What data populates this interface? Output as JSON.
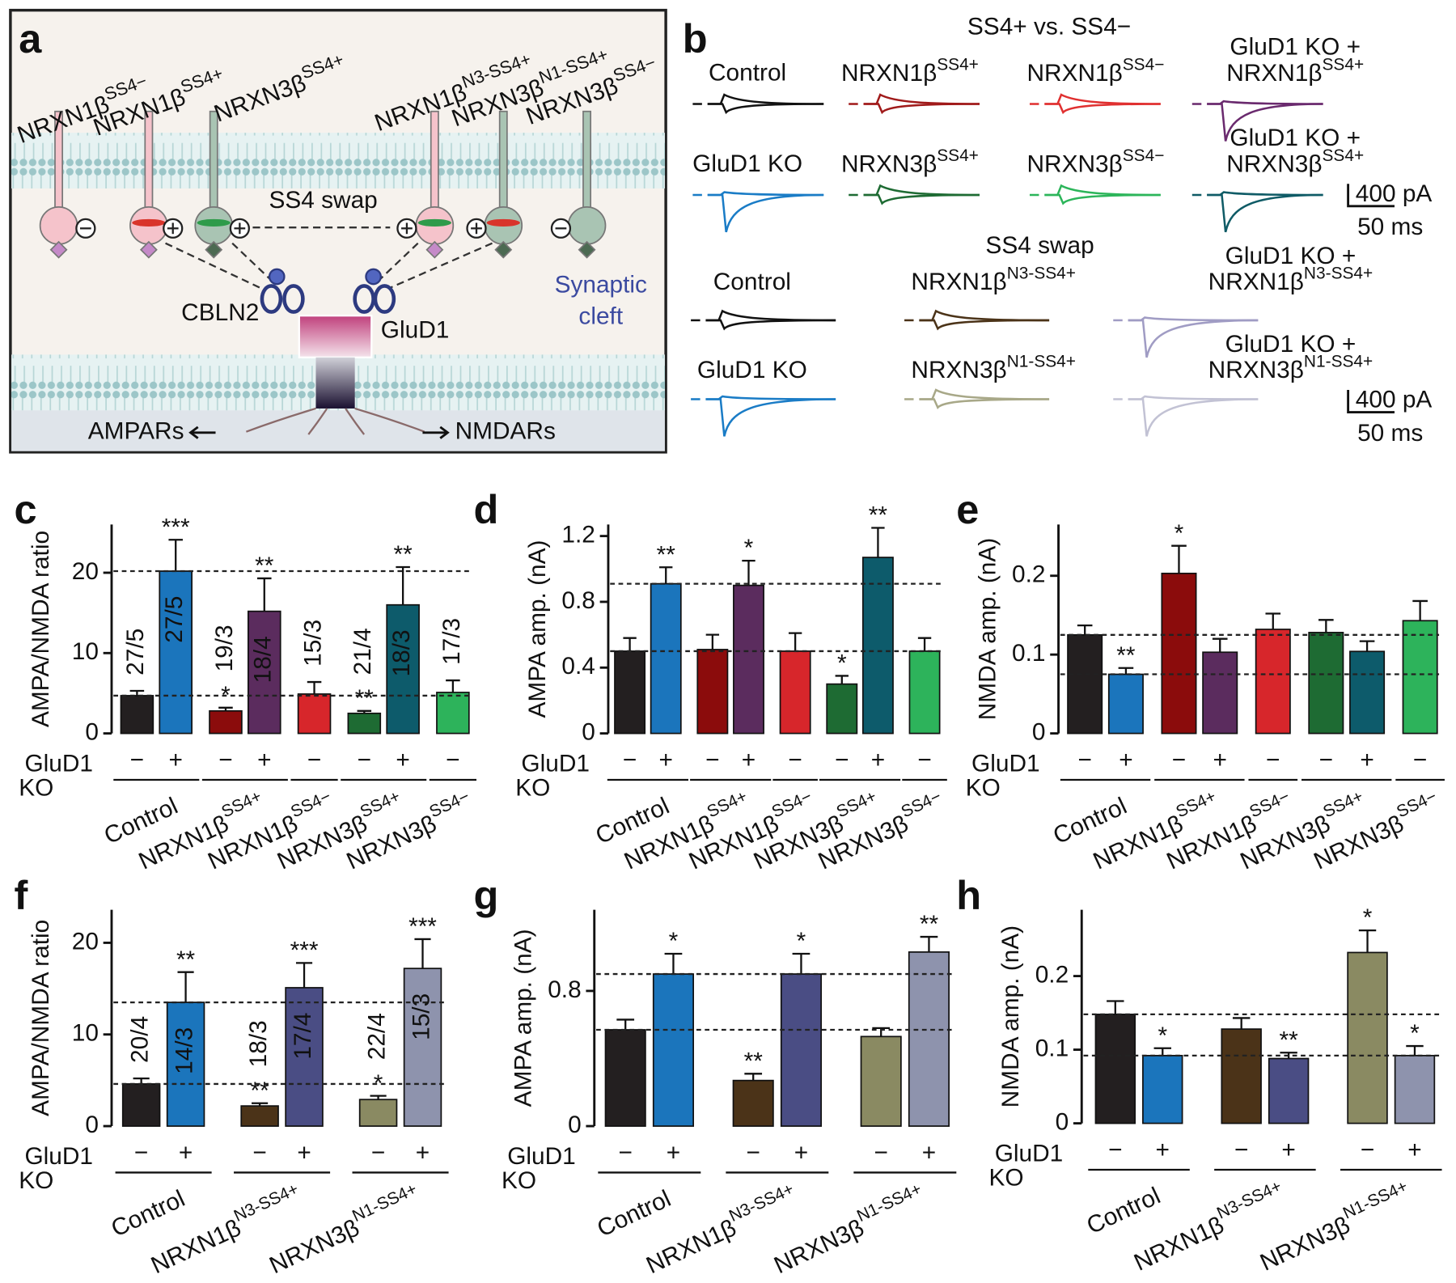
{
  "panel_labels": [
    "a",
    "b",
    "c",
    "d",
    "e",
    "f",
    "g",
    "h"
  ],
  "diagram": {
    "nrxn_labels": [
      {
        "base": "NRXN1β",
        "sup": "SS4−"
      },
      {
        "base": "NRXN1β",
        "sup": "SS4+"
      },
      {
        "base": "NRXN3β",
        "sup": "SS4+"
      },
      {
        "base": "NRXN1β",
        "sup": "N3-SS4+"
      },
      {
        "base": "NRXN3β",
        "sup": "N1-SS4+"
      },
      {
        "base": "NRXN3β",
        "sup": "SS4−"
      }
    ],
    "ss4_swap": "SS4 swap",
    "cbln2": "CBLN2",
    "glud1": "GluD1",
    "synaptic_cleft": [
      "Synaptic",
      "cleft"
    ],
    "ampars": "AMPARs",
    "nmdars": "NMDARs"
  },
  "traces": [
    {
      "title": "SS4+ vs. SS4−",
      "items": [
        {
          "label": [
            "Control"
          ],
          "color": "#111111"
        },
        {
          "label": [
            {
              "base": "NRXN1β",
              "sup": "SS4+"
            }
          ],
          "color": "#a01a1a"
        },
        {
          "label": [
            {
              "base": "NRXN1β",
              "sup": "SS4−"
            }
          ],
          "color": "#e03030"
        },
        {
          "label": [
            "GluD1 KO +",
            {
              "base": "NRXN1β",
              "sup": "SS4+"
            }
          ],
          "color": "#6a2a6e"
        },
        {
          "label": [
            "GluD1 KO"
          ],
          "color": "#1a7cc6"
        },
        {
          "label": [
            {
              "base": "NRXN3β",
              "sup": "SS4+"
            }
          ],
          "color": "#1e6b33"
        },
        {
          "label": [
            {
              "base": "NRXN3β",
              "sup": "SS4−"
            }
          ],
          "color": "#2cb55a"
        },
        {
          "label": [
            "GluD1 KO +",
            {
              "base": "NRXN3β",
              "sup": "SS4+"
            }
          ],
          "color": "#0f5b66"
        }
      ],
      "scale": {
        "current": "400 pA",
        "time": "50 ms"
      }
    },
    {
      "title": "SS4 swap",
      "items": [
        {
          "label": [
            "Control"
          ],
          "color": "#111111"
        },
        {
          "label": [
            "GluD1 KO"
          ],
          "color": "#1a7cc6"
        },
        {
          "label": [
            {
              "base": "NRXN1β",
              "sup": "N3-SS4+"
            }
          ],
          "color": "#4b3318"
        },
        {
          "label": [
            {
              "base": "NRXN3β",
              "sup": "N1-SS4+"
            }
          ],
          "color": "#a8a888"
        },
        {
          "label": [
            "GluD1 KO +",
            {
              "base": "NRXN1β",
              "sup": "N3-SS4+"
            }
          ],
          "color": "#a09cc4"
        },
        {
          "label": [
            "GluD1 KO +",
            {
              "base": "NRXN3β",
              "sup": "N1-SS4+"
            }
          ],
          "color": "#c2c2d4"
        }
      ],
      "scale": {
        "current": "400 pA",
        "time": "50 ms"
      }
    }
  ],
  "chart_data": [
    {
      "type": "bar",
      "ylabel": "AMPA/NMDA ratio",
      "ylim": [
        0,
        26
      ],
      "yticks": [
        0,
        10,
        20
      ],
      "row_label": [
        "GluD1",
        "KO"
      ],
      "reference_lines": true,
      "groups": [
        {
          "label": "Control",
          "ko": [
            "−",
            "+"
          ],
          "colors": [
            "#231f20",
            "#1b75bc"
          ],
          "values": [
            4.7,
            20.2
          ],
          "errors": [
            0.6,
            3.9
          ],
          "stars": [
            null,
            "***"
          ],
          "n": [
            "27/5",
            "27/5"
          ]
        },
        {
          "label": {
            "base": "NRXN1β",
            "sup": "SS4+"
          },
          "ko": [
            "−",
            "+"
          ],
          "colors": [
            "#8b0c0c",
            "#5b2c5e"
          ],
          "values": [
            2.8,
            15.2
          ],
          "errors": [
            0.4,
            4.1
          ],
          "stars": [
            "*",
            "**"
          ],
          "n": [
            "19/3",
            "18/4"
          ]
        },
        {
          "label": {
            "base": "NRXN1β",
            "sup": "SS4−"
          },
          "ko": [
            "−"
          ],
          "colors": [
            "#d7262b"
          ],
          "values": [
            4.9
          ],
          "errors": [
            1.5
          ],
          "stars": [
            null
          ],
          "n": [
            "15/3"
          ]
        },
        {
          "label": {
            "base": "NRXN3β",
            "sup": "SS4+"
          },
          "ko": [
            "−",
            "+"
          ],
          "colors": [
            "#1e6b33",
            "#0d5b6b"
          ],
          "values": [
            2.5,
            16.0
          ],
          "errors": [
            0.3,
            4.7
          ],
          "stars": [
            "**",
            "**"
          ],
          "n": [
            "21/4",
            "18/3"
          ]
        },
        {
          "label": {
            "base": "NRXN3β",
            "sup": "SS4−"
          },
          "ko": [
            "−"
          ],
          "colors": [
            "#2db35b"
          ],
          "values": [
            5.1
          ],
          "errors": [
            1.5
          ],
          "stars": [
            null
          ],
          "n": [
            "17/3"
          ]
        }
      ]
    },
    {
      "type": "bar",
      "ylabel": "AMPA amp. (nA)",
      "ylim": [
        0,
        1.27
      ],
      "yticks": [
        0,
        0.4,
        0.8,
        1.2
      ],
      "row_label": [
        "GluD1",
        "KO"
      ],
      "reference_lines": true,
      "groups": [
        {
          "label": "Control",
          "ko": [
            "−",
            "+"
          ],
          "colors": [
            "#231f20",
            "#1b75bc"
          ],
          "values": [
            0.5,
            0.91
          ],
          "errors": [
            0.08,
            0.1
          ],
          "stars": [
            null,
            "**"
          ]
        },
        {
          "label": {
            "base": "NRXN1β",
            "sup": "SS4+"
          },
          "ko": [
            "−",
            "+"
          ],
          "colors": [
            "#8b0c0c",
            "#5b2c5e"
          ],
          "values": [
            0.51,
            0.9
          ],
          "errors": [
            0.09,
            0.15
          ],
          "stars": [
            null,
            "*"
          ]
        },
        {
          "label": {
            "base": "NRXN1β",
            "sup": "SS4−"
          },
          "ko": [
            "−"
          ],
          "colors": [
            "#d7262b"
          ],
          "values": [
            0.5
          ],
          "errors": [
            0.11
          ],
          "stars": [
            null
          ]
        },
        {
          "label": {
            "base": "NRXN3β",
            "sup": "SS4+"
          },
          "ko": [
            "−",
            "+"
          ],
          "colors": [
            "#1e6b33",
            "#0d5b6b"
          ],
          "values": [
            0.3,
            1.07
          ],
          "errors": [
            0.05,
            0.18
          ],
          "stars": [
            "*",
            "**"
          ]
        },
        {
          "label": {
            "base": "NRXN3β",
            "sup": "SS4−"
          },
          "ko": [
            "−"
          ],
          "colors": [
            "#2db35b"
          ],
          "values": [
            0.5
          ],
          "errors": [
            0.08
          ],
          "stars": [
            null
          ]
        }
      ]
    },
    {
      "type": "bar",
      "ylabel": "NMDA amp. (nA)",
      "ylim": [
        0,
        0.265
      ],
      "yticks": [
        0,
        0.1,
        0.2
      ],
      "row_label": [
        "GluD1",
        "KO"
      ],
      "reference_lines": true,
      "groups": [
        {
          "label": "Control",
          "ko": [
            "−",
            "+"
          ],
          "colors": [
            "#231f20",
            "#1b75bc"
          ],
          "values": [
            0.125,
            0.075
          ],
          "errors": [
            0.012,
            0.008
          ],
          "stars": [
            null,
            "**"
          ]
        },
        {
          "label": {
            "base": "NRXN1β",
            "sup": "SS4+"
          },
          "ko": [
            "−",
            "+"
          ],
          "colors": [
            "#8b0c0c",
            "#5b2c5e"
          ],
          "values": [
            0.203,
            0.103
          ],
          "errors": [
            0.035,
            0.017
          ],
          "stars": [
            "*",
            null
          ]
        },
        {
          "label": {
            "base": "NRXN1β",
            "sup": "SS4−"
          },
          "ko": [
            "−"
          ],
          "colors": [
            "#d7262b"
          ],
          "values": [
            0.132
          ],
          "errors": [
            0.02
          ],
          "stars": [
            null
          ]
        },
        {
          "label": {
            "base": "NRXN3β",
            "sup": "SS4+"
          },
          "ko": [
            "−",
            "+"
          ],
          "colors": [
            "#1e6b33",
            "#0d5b6b"
          ],
          "values": [
            0.128,
            0.104
          ],
          "errors": [
            0.016,
            0.013
          ],
          "stars": [
            null,
            null
          ]
        },
        {
          "label": {
            "base": "NRXN3β",
            "sup": "SS4−"
          },
          "ko": [
            "−"
          ],
          "colors": [
            "#2db35b"
          ],
          "values": [
            0.143
          ],
          "errors": [
            0.025
          ],
          "stars": [
            null
          ]
        }
      ]
    },
    {
      "type": "bar",
      "ylabel": "AMPA/NMDA ratio",
      "ylim": [
        0,
        23.6
      ],
      "yticks": [
        0,
        10,
        20
      ],
      "row_label": [
        "GluD1",
        "KO"
      ],
      "reference_lines": true,
      "groups": [
        {
          "label": "Control",
          "ko": [
            "−",
            "+"
          ],
          "colors": [
            "#231f20",
            "#1b75bc"
          ],
          "values": [
            4.6,
            13.5
          ],
          "errors": [
            0.6,
            3.3
          ],
          "stars": [
            null,
            "**"
          ],
          "n": [
            "20/4",
            "14/3"
          ]
        },
        {
          "label": {
            "base": "NRXN1β",
            "sup": "N3-SS4+"
          },
          "ko": [
            "−",
            "+"
          ],
          "colors": [
            "#4b3318",
            "#4a4d84"
          ],
          "values": [
            2.2,
            15.1
          ],
          "errors": [
            0.3,
            2.7
          ],
          "stars": [
            "**",
            "***"
          ],
          "n": [
            "18/3",
            "17/4"
          ]
        },
        {
          "label": {
            "base": "NRXN3β",
            "sup": "N1-SS4+"
          },
          "ko": [
            "−",
            "+"
          ],
          "colors": [
            "#8a8a62",
            "#8e93ad"
          ],
          "values": [
            2.9,
            17.2
          ],
          "errors": [
            0.4,
            3.2
          ],
          "stars": [
            "*",
            "***"
          ],
          "n": [
            "22/4",
            "15/3"
          ]
        }
      ]
    },
    {
      "type": "bar",
      "ylabel": "AMPA amp. (nA)",
      "ylim": [
        0,
        1.28
      ],
      "yticks": [
        0,
        0.8
      ],
      "row_label": [
        "GluD1",
        "KO"
      ],
      "reference_lines": true,
      "groups": [
        {
          "label": "Control",
          "ko": [
            "−",
            "+"
          ],
          "colors": [
            "#231f20",
            "#1b75bc"
          ],
          "values": [
            0.57,
            0.9
          ],
          "errors": [
            0.06,
            0.12
          ],
          "stars": [
            null,
            "*"
          ]
        },
        {
          "label": {
            "base": "NRXN1β",
            "sup": "N3-SS4+"
          },
          "ko": [
            "−",
            "+"
          ],
          "colors": [
            "#4b3318",
            "#4a4d84"
          ],
          "values": [
            0.27,
            0.9
          ],
          "errors": [
            0.04,
            0.12
          ],
          "stars": [
            "**",
            "*"
          ]
        },
        {
          "label": {
            "base": "NRXN3β",
            "sup": "N1-SS4+"
          },
          "ko": [
            "−",
            "+"
          ],
          "colors": [
            "#8a8a62",
            "#8e93ad"
          ],
          "values": [
            0.53,
            1.03
          ],
          "errors": [
            0.05,
            0.09
          ],
          "stars": [
            null,
            "**"
          ]
        }
      ]
    },
    {
      "type": "bar",
      "ylabel": "NMDA amp. (nA)",
      "ylim": [
        0,
        0.29
      ],
      "yticks": [
        0,
        0.1,
        0.2
      ],
      "row_label": [
        "GluD1",
        "KO"
      ],
      "reference_lines": true,
      "groups": [
        {
          "label": "Control",
          "ko": [
            "−",
            "+"
          ],
          "colors": [
            "#231f20",
            "#1b75bc"
          ],
          "values": [
            0.148,
            0.092
          ],
          "errors": [
            0.018,
            0.01
          ],
          "stars": [
            null,
            "*"
          ]
        },
        {
          "label": {
            "base": "NRXN1β",
            "sup": "N3-SS4+"
          },
          "ko": [
            "−",
            "+"
          ],
          "colors": [
            "#4b3318",
            "#4a4d84"
          ],
          "values": [
            0.128,
            0.088
          ],
          "errors": [
            0.015,
            0.008
          ],
          "stars": [
            null,
            "**"
          ]
        },
        {
          "label": {
            "base": "NRXN3β",
            "sup": "N1-SS4+"
          },
          "ko": [
            "−",
            "+"
          ],
          "colors": [
            "#8a8a62",
            "#8e93ad"
          ],
          "values": [
            0.232,
            0.092
          ],
          "errors": [
            0.03,
            0.013
          ],
          "stars": [
            "*",
            "*"
          ]
        }
      ]
    }
  ]
}
